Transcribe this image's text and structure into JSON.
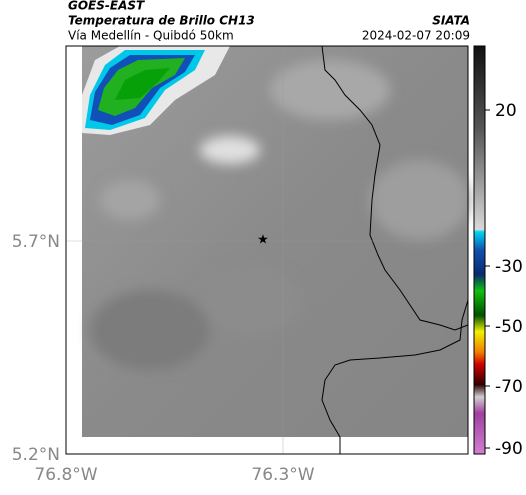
{
  "header": {
    "source": "GOES-EAST",
    "product": "Temperatura de Brillo CH13",
    "route": "Vía Medellín - Quibdó 50km",
    "agency": "SIATA",
    "timestamp": "2024-02-07 20:09"
  },
  "map": {
    "lat_labels": [
      "5.7°N",
      "5.2°N"
    ],
    "lon_labels": [
      "76.8°W",
      "76.3°W"
    ]
  },
  "colorbar": {
    "ticks": [
      20,
      -30,
      -50,
      -70,
      -90
    ]
  }
}
